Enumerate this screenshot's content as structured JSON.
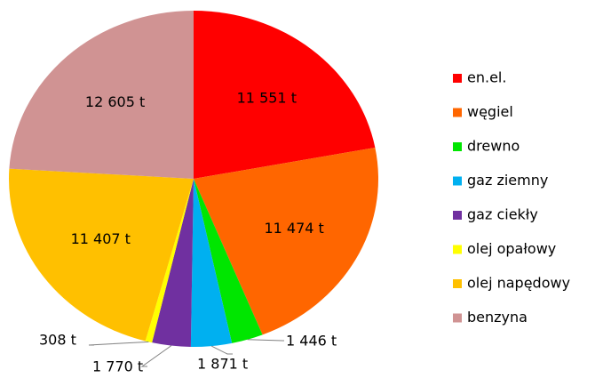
{
  "chart_data": {
    "type": "pie",
    "categories": [
      "en.el.",
      "węgiel",
      "drewno",
      "gaz ziemny",
      "gaz ciekły",
      "olej opałowy",
      "olej napędowy",
      "benzyna"
    ],
    "values": [
      11551,
      11474,
      1446,
      1871,
      1770,
      308,
      11407,
      12605
    ],
    "value_labels": [
      "11 551 t",
      "11 474 t",
      "1 446 t",
      "1 871 t",
      "1 770 t",
      "308 t",
      "11 407 t",
      "12 605 t"
    ],
    "colors": [
      "#ff0000",
      "#ff6600",
      "#00e600",
      "#00b0f0",
      "#7030a0",
      "#ffff00",
      "#ffc000",
      "#d09393"
    ],
    "legend": "right"
  }
}
